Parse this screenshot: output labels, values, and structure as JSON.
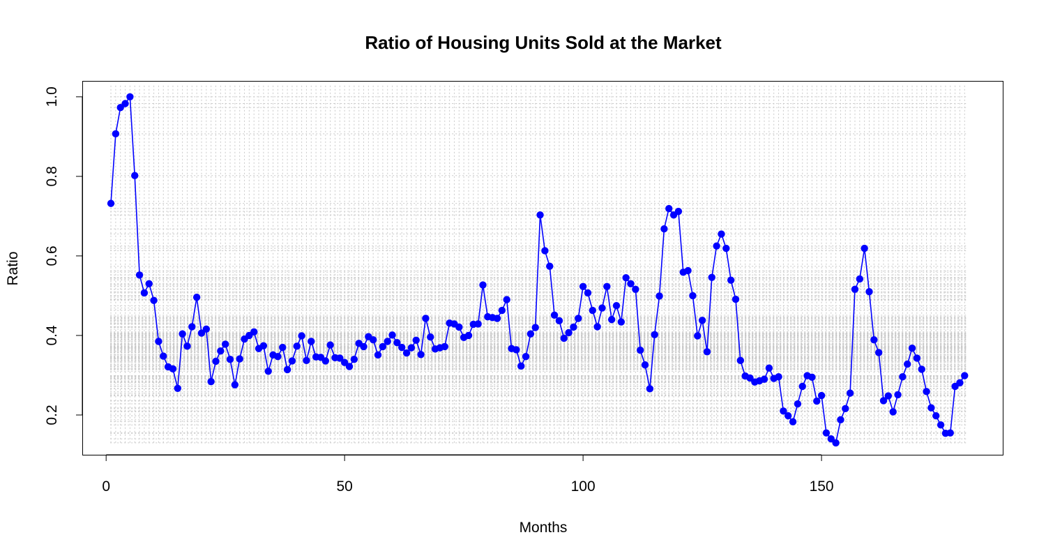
{
  "chart_data": {
    "type": "line",
    "title": "Ratio of Housing Units Sold at the Market",
    "xlabel": "Months",
    "ylabel": "Ratio",
    "xlim": [
      -5,
      188
    ],
    "ylim": [
      0.1,
      1.04
    ],
    "xticks": [
      0,
      50,
      100,
      150
    ],
    "yticks": [
      0.2,
      0.4,
      0.6,
      0.8,
      1.0
    ],
    "ytick_labels": [
      "0.2",
      "0.4",
      "0.6",
      "0.8",
      "1.0"
    ],
    "grid": true,
    "colors": {
      "series": "#0000ff",
      "grid": "#c8c8c8"
    },
    "series": [
      {
        "x": [
          1,
          2,
          3,
          4,
          5,
          6,
          7,
          8,
          9,
          10,
          11,
          12,
          13,
          14,
          15,
          16,
          17,
          18,
          19,
          20,
          21,
          22,
          23,
          24,
          25,
          26,
          27,
          28,
          29,
          30,
          31,
          32,
          33,
          34,
          35,
          36,
          37,
          38,
          39,
          40,
          41,
          42,
          43,
          44,
          45,
          46,
          47,
          48,
          49,
          50,
          51,
          52,
          53,
          54,
          55,
          56,
          57,
          58,
          59,
          60,
          61,
          62,
          63,
          64,
          65,
          66,
          67,
          68,
          69,
          70,
          71,
          72,
          73,
          74,
          75,
          76,
          77,
          78,
          79,
          80,
          81,
          82,
          83,
          84,
          85,
          86,
          87,
          88,
          89,
          90,
          91,
          92,
          93,
          94,
          95,
          96,
          97,
          98,
          99,
          100,
          101,
          102,
          103,
          104,
          105,
          106,
          107,
          108,
          109,
          110,
          111,
          112,
          113,
          114,
          115,
          116,
          117,
          118,
          119,
          120,
          121,
          122,
          123,
          124,
          125,
          126,
          127,
          128,
          129,
          130,
          131,
          132,
          133,
          134,
          135,
          136,
          137,
          138,
          139,
          140,
          141,
          142,
          143,
          144,
          145,
          146,
          147,
          148,
          149,
          150,
          151,
          152,
          153,
          154,
          155,
          156,
          157,
          158,
          159,
          160,
          161,
          162,
          163,
          164,
          165,
          166,
          167,
          168,
          169,
          170,
          171,
          172,
          173,
          174,
          175,
          176,
          177,
          178,
          179,
          180
        ],
        "values": [
          0.732,
          0.907,
          0.973,
          0.983,
          1.0,
          0.802,
          0.552,
          0.507,
          0.53,
          0.488,
          0.385,
          0.348,
          0.321,
          0.316,
          0.267,
          0.404,
          0.373,
          0.422,
          0.496,
          0.406,
          0.416,
          0.284,
          0.335,
          0.361,
          0.378,
          0.34,
          0.276,
          0.341,
          0.391,
          0.4,
          0.409,
          0.367,
          0.374,
          0.31,
          0.351,
          0.347,
          0.37,
          0.314,
          0.336,
          0.373,
          0.399,
          0.337,
          0.385,
          0.346,
          0.345,
          0.336,
          0.376,
          0.344,
          0.343,
          0.332,
          0.322,
          0.34,
          0.38,
          0.372,
          0.397,
          0.389,
          0.351,
          0.372,
          0.385,
          0.401,
          0.382,
          0.37,
          0.356,
          0.369,
          0.388,
          0.352,
          0.443,
          0.396,
          0.366,
          0.369,
          0.372,
          0.431,
          0.429,
          0.421,
          0.395,
          0.4,
          0.428,
          0.429,
          0.527,
          0.447,
          0.445,
          0.443,
          0.463,
          0.49,
          0.367,
          0.364,
          0.323,
          0.347,
          0.404,
          0.42,
          0.703,
          0.613,
          0.574,
          0.451,
          0.437,
          0.393,
          0.407,
          0.421,
          0.443,
          0.523,
          0.507,
          0.463,
          0.422,
          0.469,
          0.523,
          0.44,
          0.475,
          0.434,
          0.545,
          0.53,
          0.516,
          0.363,
          0.326,
          0.266,
          0.402,
          0.499,
          0.668,
          0.719,
          0.703,
          0.712,
          0.559,
          0.563,
          0.5,
          0.399,
          0.438,
          0.359,
          0.546,
          0.625,
          0.655,
          0.619,
          0.539,
          0.491,
          0.337,
          0.298,
          0.293,
          0.283,
          0.286,
          0.29,
          0.318,
          0.292,
          0.296,
          0.21,
          0.198,
          0.183,
          0.228,
          0.272,
          0.299,
          0.295,
          0.235,
          0.249,
          0.155,
          0.14,
          0.13,
          0.188,
          0.216,
          0.255,
          0.516,
          0.542,
          0.619,
          0.51,
          0.389,
          0.357,
          0.236,
          0.248,
          0.208,
          0.251,
          0.296,
          0.328,
          0.368,
          0.343,
          0.315,
          0.259,
          0.218,
          0.198,
          0.175,
          0.154,
          0.155,
          0.272,
          0.281,
          0.299
        ]
      }
    ]
  }
}
